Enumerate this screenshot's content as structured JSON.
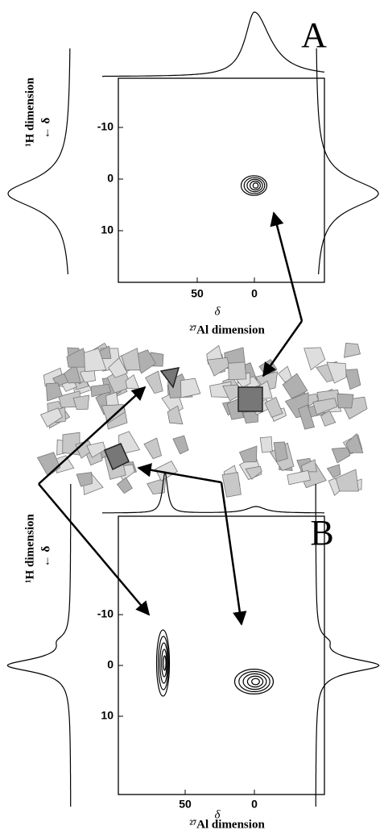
{
  "panels": [
    {
      "label": "A",
      "x_ticks": [
        50,
        0
      ],
      "y_ticks": [
        -10,
        0,
        10
      ],
      "x_symbol": "δ",
      "x_label": "²⁷Al dimension",
      "y_label": "¹H dimension",
      "y_symbol": "← δ"
    },
    {
      "label": "B",
      "x_ticks": [
        50,
        0
      ],
      "y_ticks": [
        -10,
        0,
        10
      ],
      "x_symbol": "δ",
      "x_label": "²⁷Al dimension",
      "y_label": "¹H dimension",
      "y_symbol": "← δ"
    }
  ]
}
